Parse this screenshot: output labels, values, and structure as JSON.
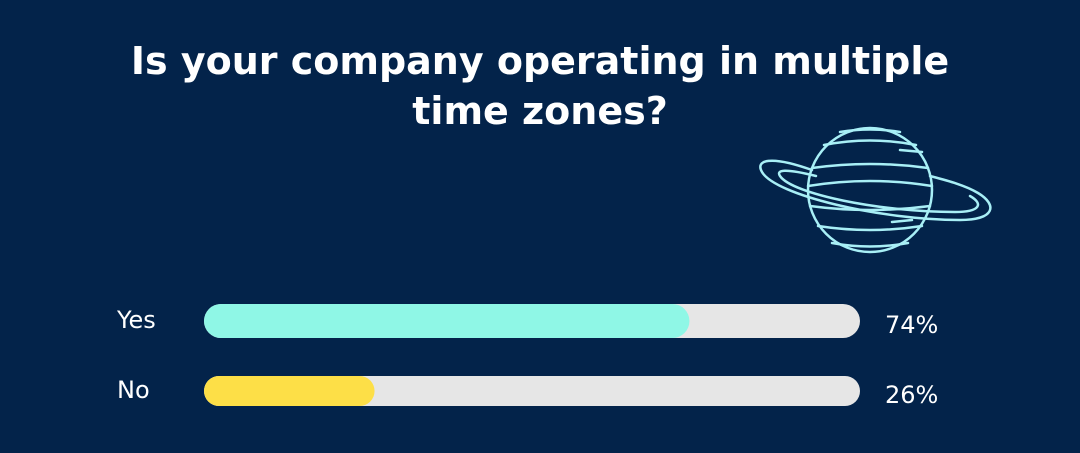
{
  "chart_data": {
    "type": "bar",
    "orientation": "horizontal",
    "title": "Is your company operating in multiple time zones?",
    "categories": [
      "Yes",
      "No"
    ],
    "values": [
      74,
      26
    ],
    "value_labels": [
      "74%",
      "26%"
    ],
    "colors": [
      "#8ff7e6",
      "#fddf47"
    ],
    "xlim": [
      0,
      100
    ]
  }
}
